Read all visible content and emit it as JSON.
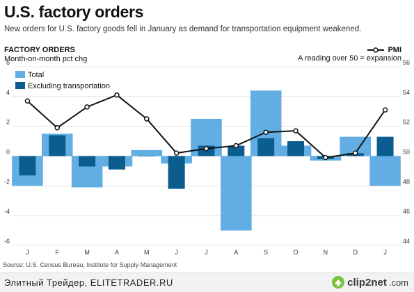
{
  "title": "U.S. factory orders",
  "subtitle": "New orders for U.S. factory goods fell in January as demand for transportation equipment weakened.",
  "colors": {
    "total": "#62aee4",
    "excluding": "#0b5d8f",
    "pmi_line": "#111111",
    "grid": "#d0d0d0"
  },
  "chart_data": {
    "type": "bar+line",
    "title": "FACTORY ORDERS",
    "subtitle": "Month-on-month pct chg",
    "categories": [
      "J",
      "F",
      "M",
      "A",
      "M",
      "J",
      "J",
      "A",
      "S",
      "O",
      "N",
      "D",
      "J"
    ],
    "series": [
      {
        "name": "Total",
        "type": "bar",
        "axis": "left",
        "values": [
          -2.0,
          1.5,
          -2.1,
          -0.7,
          0.4,
          -0.5,
          2.5,
          -5.0,
          4.4,
          0.7,
          -0.3,
          1.3,
          -2.0
        ]
      },
      {
        "name": "Excluding transportation",
        "type": "bar",
        "axis": "left",
        "values": [
          -1.3,
          1.4,
          -0.7,
          -0.9,
          0.0,
          -2.2,
          0.7,
          0.7,
          1.2,
          1.0,
          -0.2,
          0.2,
          1.3
        ]
      },
      {
        "name": "PMI",
        "type": "line",
        "axis": "right",
        "values": [
          53.7,
          51.9,
          53.3,
          54.1,
          52.5,
          50.2,
          50.5,
          50.7,
          51.6,
          51.7,
          49.9,
          50.2,
          53.1
        ]
      }
    ],
    "left_axis": {
      "ylim": [
        -6,
        6
      ],
      "ticks": [
        6,
        4,
        2,
        0,
        -2,
        -4,
        -6
      ]
    },
    "right_axis": {
      "ylim": [
        44,
        56
      ],
      "ticks": [
        56,
        54,
        52,
        50,
        48,
        46,
        44
      ]
    },
    "legend": {
      "position": "top-left",
      "items": [
        {
          "label": "Total",
          "series": "Total"
        },
        {
          "label": "Excluding transportation",
          "series": "Excluding transportation"
        }
      ]
    },
    "pmi_legend": {
      "label": "PMI",
      "note": "A reading over 50 = expansion",
      "position": "top-right"
    },
    "grid": "horizontal"
  },
  "source": "Source: U.S. Census Bureau, Institute for Supply Management",
  "footer": {
    "caption": "Элитный Трейдер, ELITETRADER.RU",
    "logo_word": "clip2net",
    "logo_domain": ".com"
  }
}
